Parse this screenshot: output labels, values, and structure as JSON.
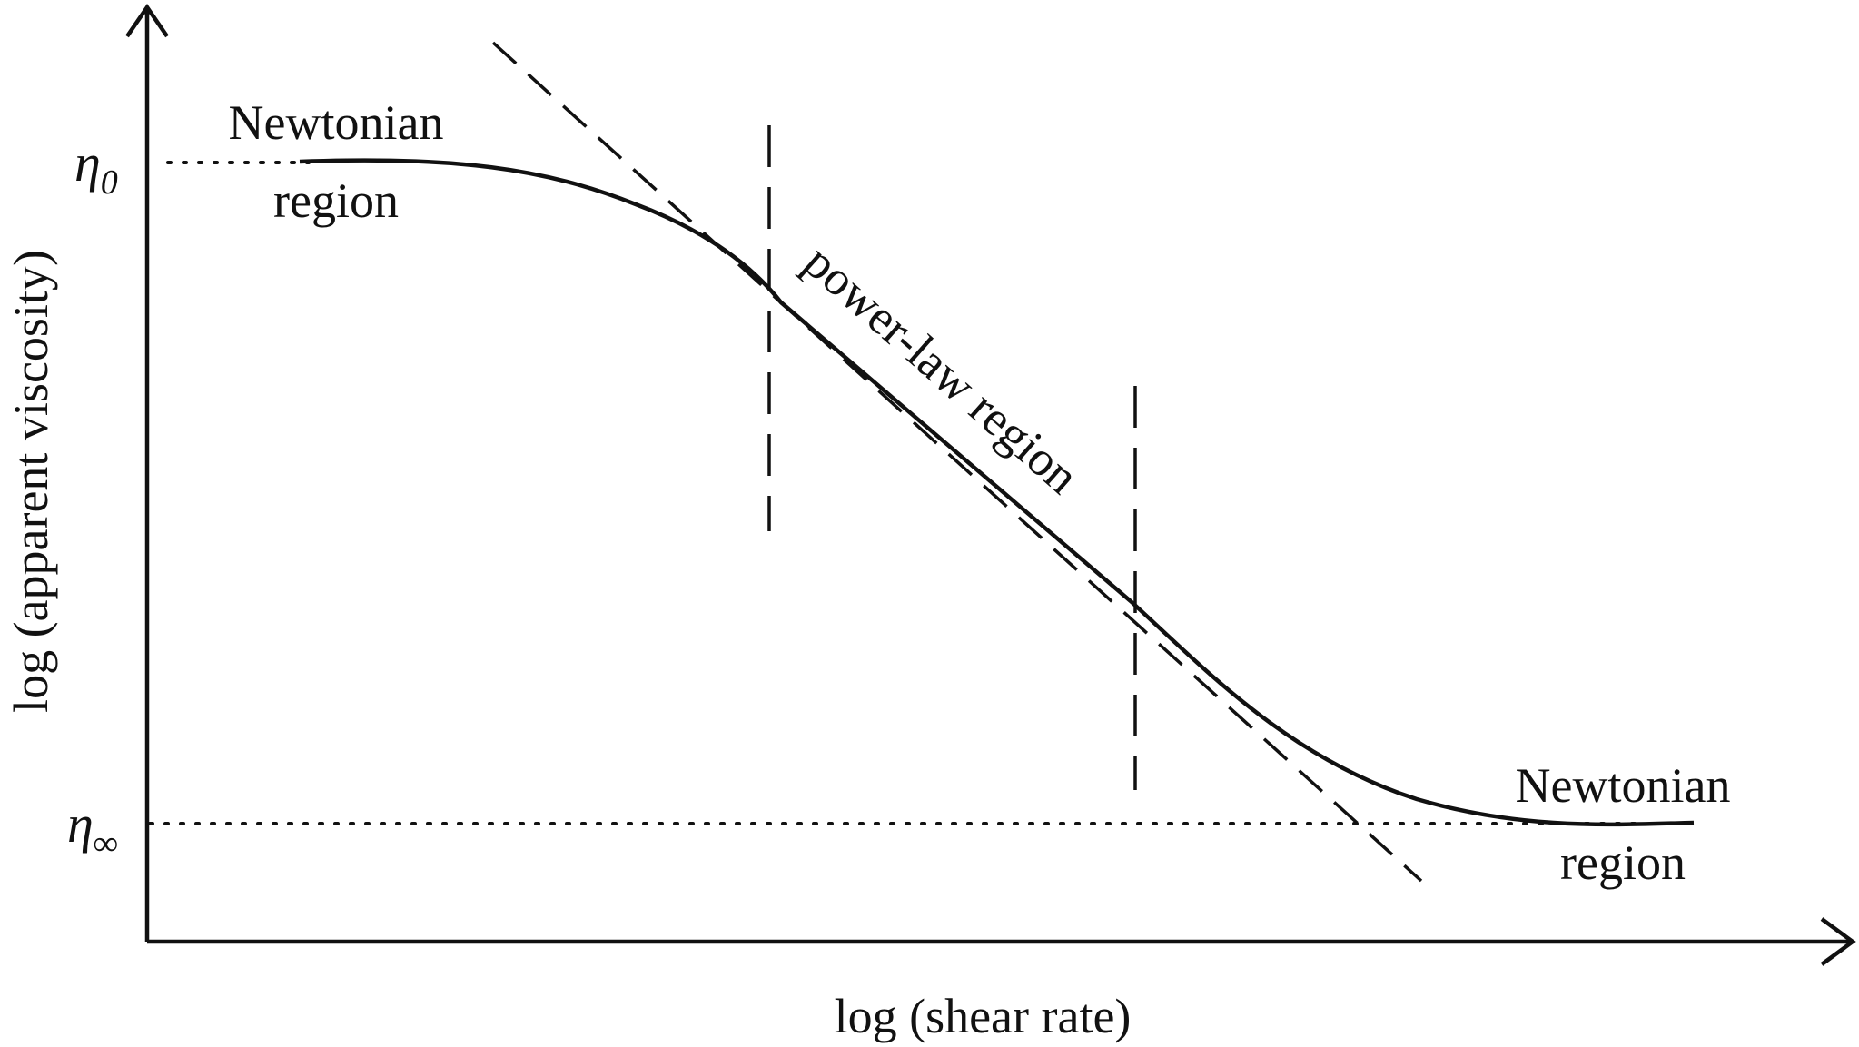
{
  "axes": {
    "x_label": "log (shear rate)",
    "y_label": "log (apparent viscosity)"
  },
  "levels": {
    "upper": {
      "symbol": "η",
      "subscript": "0"
    },
    "lower": {
      "symbol": "η",
      "subscript": "∞"
    }
  },
  "regions": {
    "left_newtonian": {
      "line1": "Newtonian",
      "line2": "region"
    },
    "power_law": {
      "label": "power-law region"
    },
    "right_newtonian": {
      "line1": "Newtonian",
      "line2": "region"
    }
  },
  "colors": {
    "ink": "#111111",
    "background": "#ffffff"
  }
}
